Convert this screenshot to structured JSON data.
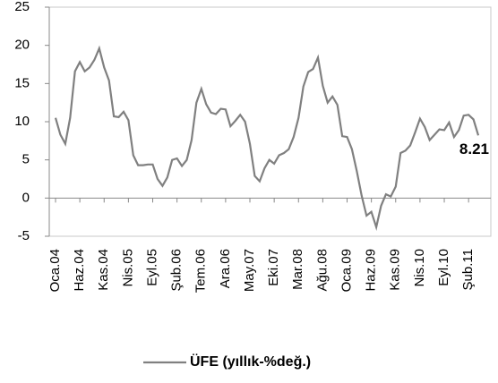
{
  "chart_data": {
    "type": "line",
    "categories": [
      "Oca.04",
      null,
      null,
      null,
      null,
      "Haz.04",
      null,
      null,
      null,
      null,
      "Kas.04",
      null,
      null,
      null,
      null,
      "Nis.05",
      null,
      null,
      null,
      null,
      "Eyl.05",
      null,
      null,
      null,
      null,
      "Şub.06",
      null,
      null,
      null,
      null,
      "Tem.06",
      null,
      null,
      null,
      null,
      "Ara.06",
      null,
      null,
      null,
      null,
      "May.07",
      null,
      null,
      null,
      null,
      "Eki.07",
      null,
      null,
      null,
      null,
      "Mar.08",
      null,
      null,
      null,
      null,
      "Ağu.08",
      null,
      null,
      null,
      null,
      "Oca.09",
      null,
      null,
      null,
      null,
      "Haz.09",
      null,
      null,
      null,
      null,
      "Kas.09",
      null,
      null,
      null,
      null,
      "Nis.10",
      null,
      null,
      null,
      null,
      "Eyl.10",
      null,
      null,
      null,
      null,
      "Şub.11",
      null,
      null
    ],
    "series": [
      {
        "name": "ÜFE (yıllık-%değ.)",
        "color": "#808080",
        "values": [
          10.5,
          8.3,
          7.1,
          10.5,
          16.6,
          17.8,
          16.6,
          17.1,
          18.1,
          19.6,
          17.1,
          15.4,
          10.7,
          10.6,
          11.3,
          10.2,
          5.6,
          4.3,
          4.3,
          4.4,
          4.4,
          2.5,
          1.6,
          2.7,
          5.0,
          5.2,
          4.2,
          5.0,
          7.6,
          12.5,
          14.3,
          12.3,
          11.2,
          11.0,
          11.7,
          11.6,
          9.4,
          10.1,
          10.9,
          10.0,
          7.1,
          2.9,
          2.2,
          3.9,
          5.0,
          4.5,
          5.6,
          5.9,
          6.4,
          8.0,
          10.5,
          14.6,
          16.5,
          16.9,
          18.4,
          14.7,
          12.5,
          13.3,
          12.2,
          8.1,
          8.0,
          6.4,
          3.5,
          0.3,
          -2.3,
          -1.8,
          -3.8,
          -1.0,
          0.5,
          0.2,
          1.5,
          5.9,
          6.2,
          6.9,
          8.6,
          10.4,
          9.3,
          7.6,
          8.3,
          9.0,
          8.9,
          9.9,
          8.0,
          8.9,
          10.8,
          10.9,
          10.3,
          8.21
        ]
      }
    ],
    "ylim": [
      -5,
      25
    ],
    "yticks": [
      -5,
      0,
      5,
      10,
      15,
      20,
      25
    ],
    "grid": false
  }
}
